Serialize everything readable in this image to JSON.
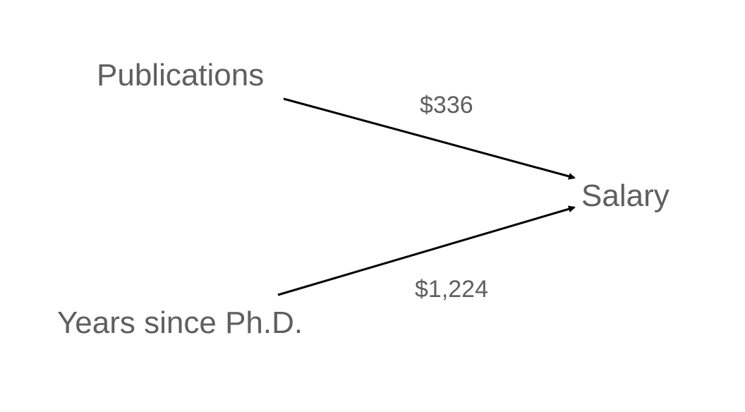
{
  "nodes": {
    "publications": "Publications",
    "years_since_phd": "Years since Ph.D.",
    "salary": "Salary"
  },
  "edges": [
    {
      "from": "publications",
      "to": "salary",
      "label": "$336"
    },
    {
      "from": "years_since_phd",
      "to": "salary",
      "label": "$1,224"
    }
  ],
  "colors": {
    "text": "#5f5f5f",
    "arrow": "#000000"
  }
}
